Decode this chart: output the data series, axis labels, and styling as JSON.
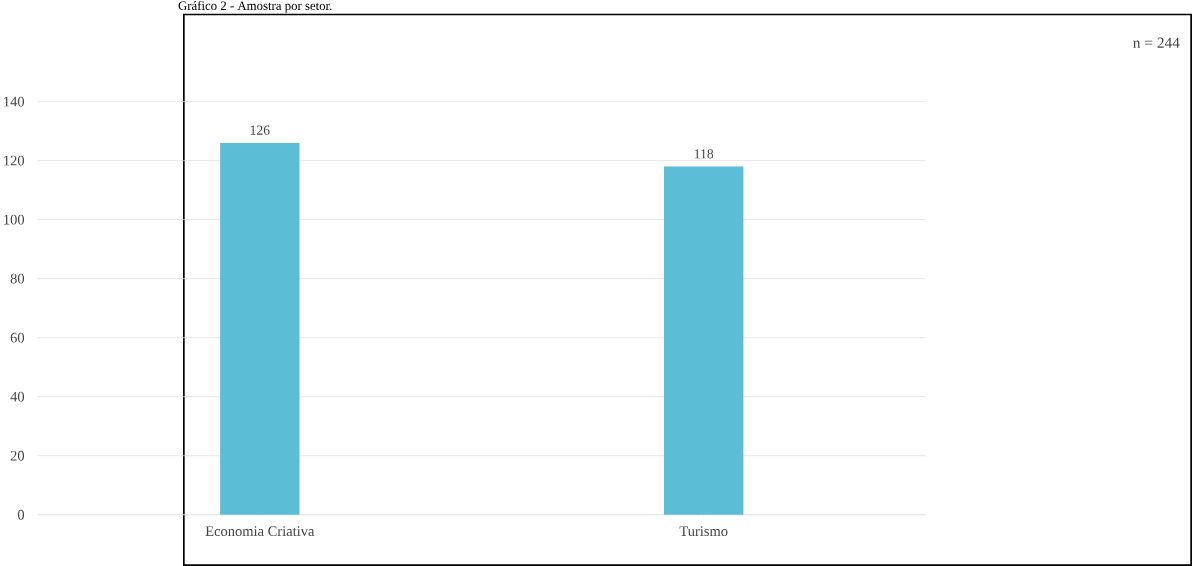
{
  "chart_data": {
    "type": "bar",
    "title": "Gráfico 2 - Amostra por setor.",
    "annotations": [
      "n = 244"
    ],
    "categories": [
      "Economia Criativa",
      "Turismo"
    ],
    "values": [
      126,
      118
    ],
    "color": "#5bbdd6",
    "ylim": [
      0,
      140
    ],
    "yticks": [
      0,
      20,
      40,
      60,
      80,
      100,
      120,
      140
    ],
    "grid": "y",
    "data_labels": true
  }
}
